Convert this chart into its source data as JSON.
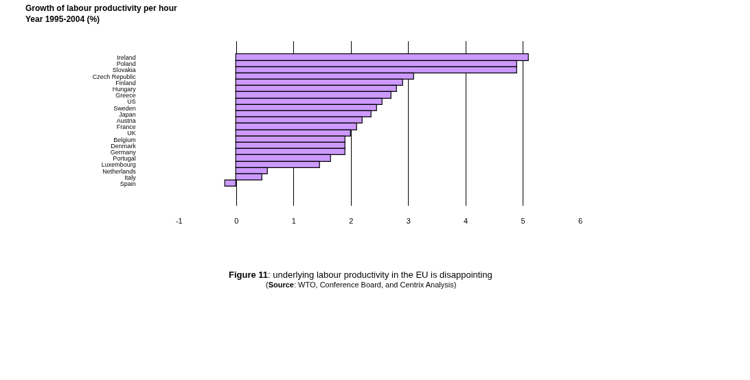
{
  "chart_data": {
    "type": "bar",
    "orientation": "horizontal",
    "title": "Growth of labour productivity per hour\nYear 1995-2004 (%)",
    "categories": [
      "Ireland",
      "Poland",
      "Slovakia",
      "Czech Republic",
      "Finland",
      "Hungary",
      "Greece",
      "US",
      "Sweden",
      "Japan",
      "Austria",
      "France",
      "UK",
      "Belgium",
      "Denmark",
      "Germany",
      "Portugal",
      "Luxembourg",
      "Netherlands",
      "Italy",
      "Spain"
    ],
    "values": [
      5.1,
      4.9,
      4.9,
      3.1,
      2.9,
      2.8,
      2.7,
      2.55,
      2.45,
      2.35,
      2.2,
      2.1,
      2.0,
      1.9,
      1.9,
      1.9,
      1.65,
      1.45,
      0.55,
      0.45,
      -0.2
    ],
    "color": "#cc99ff",
    "xlim": [
      -1,
      6
    ],
    "xticks": [
      -1,
      0,
      1,
      2,
      3,
      4,
      5,
      6
    ],
    "grid": "x",
    "annotations": [
      "Figure 11: underlying labour productivity in the EU is disappointing",
      "(Source: WTO, Conference Board, and Centrix Analysis)"
    ]
  }
}
